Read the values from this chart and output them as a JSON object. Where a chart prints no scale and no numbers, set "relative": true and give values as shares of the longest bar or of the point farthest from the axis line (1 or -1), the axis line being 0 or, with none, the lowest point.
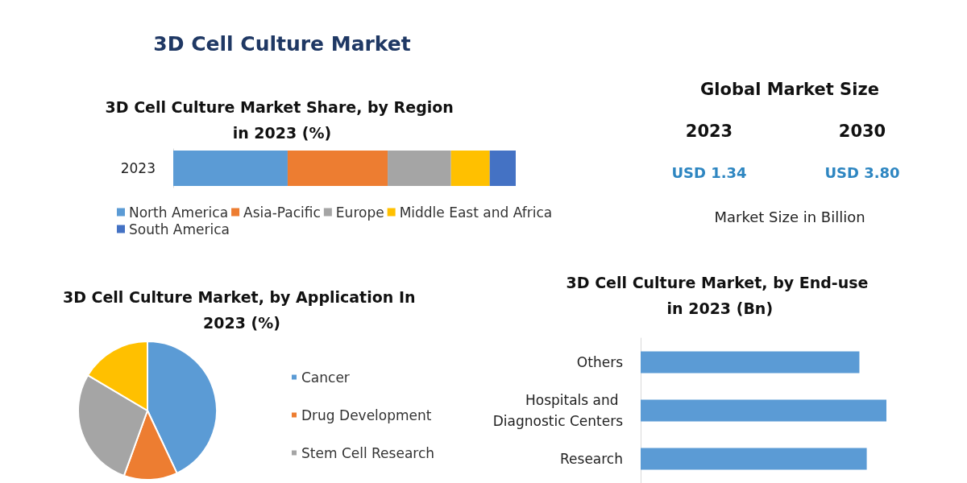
{
  "chart_data": [
    {
      "type": "bar",
      "orientation": "horizontal",
      "stacked": true,
      "relative": true,
      "title": "3D Cell Culture Market Share, by Region in 2023 (%)",
      "annotations": [
        "3D Cell Culture Market"
      ],
      "categories": [
        "2023"
      ],
      "legend": "bottom",
      "series": [
        {
          "name": "North America",
          "color": "#5b9bd5",
          "values": [
            0.334
          ]
        },
        {
          "name": "Asia-Pacific",
          "color": "#ed7d31",
          "values": [
            0.292
          ]
        },
        {
          "name": "Europe",
          "color": "#a5a5a5",
          "values": [
            0.185
          ]
        },
        {
          "name": "Middle East and Africa",
          "color": "#ffc000",
          "values": [
            0.113
          ]
        },
        {
          "name": "South America",
          "color": "#4472c4",
          "values": [
            0.076
          ]
        }
      ]
    },
    {
      "type": "other",
      "title": "Global Market Size",
      "categories": [
        "2023",
        "2030"
      ],
      "value_labels": [
        "USD 1.34",
        "USD 3.80"
      ],
      "color": "#2e86c1",
      "annotations": [
        "Market Size in Billion"
      ]
    },
    {
      "type": "pie",
      "title": "3D Cell Culture Market, by Application In 2023 (%)",
      "categories": [
        "Cancer",
        "Drug Development",
        "Stem Cell Research",
        null
      ],
      "values": [
        43,
        12.5,
        28,
        16.5
      ],
      "colors": [
        "#5b9bd5",
        "#ed7d31",
        "#a5a5a5",
        "#ffc000"
      ],
      "legend": "right"
    },
    {
      "type": "bar",
      "orientation": "horizontal",
      "relative": true,
      "title": "3D Cell Culture Market, by End-use in 2023 (Bn)",
      "categories": [
        "Others",
        "Hospitals and Diagnostic Centers",
        "Research"
      ],
      "values": [
        0.89,
        1,
        0.92
      ],
      "color": "#5b9bd5"
    }
  ]
}
